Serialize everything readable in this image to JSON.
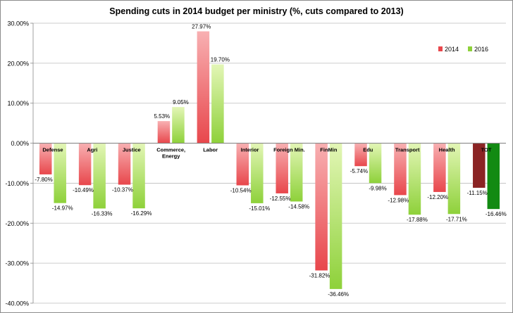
{
  "chart_data": {
    "type": "bar",
    "title": "Spending cuts in 2014 budget per ministry (%, cuts compared to 2013)",
    "xlabel": "",
    "ylabel": "",
    "ylim": [
      -40,
      30
    ],
    "ytick_step": 10,
    "y_tick_labels": [
      "30.00%",
      "20.00%",
      "10.00%",
      "0.00%",
      "-10.00%",
      "-20.00%",
      "-30.00%",
      "-40.00%"
    ],
    "categories": [
      "Defense",
      "Agri",
      "Justice",
      "Commerce,\nEnergy",
      "Labor",
      "Interior",
      "Foreign Min.",
      "FinMin",
      "Edu",
      "Transport",
      "Health",
      "TOT"
    ],
    "series": [
      {
        "name": "2014",
        "values": [
          -7.8,
          -10.49,
          -10.37,
          5.53,
          27.97,
          -10.54,
          -12.55,
          -31.82,
          -5.74,
          -12.98,
          -12.2,
          -11.15
        ],
        "labels": [
          "-7.80%",
          "-10.49%",
          "-10.37%",
          "5.53%",
          "27.97%",
          "-10.54%",
          "-12.55%",
          "-31.82%",
          "-5.74%",
          "-12.98%",
          "-12.20%",
          "-11.15%"
        ],
        "color": "#e8474c",
        "color_light": "#f8b0b2",
        "total_color": "#8b2424"
      },
      {
        "name": "2016",
        "values": [
          -14.97,
          -16.33,
          -16.29,
          9.05,
          19.7,
          -15.01,
          -14.58,
          -36.46,
          -9.98,
          -17.88,
          -17.71,
          -16.46
        ],
        "labels": [
          "-14.97%",
          "-16.33%",
          "-16.29%",
          "9.05%",
          "19.70%",
          "-15.01%",
          "-14.58%",
          "-36.46%",
          "-9.98%",
          "-17.88%",
          "-17.71%",
          "-16.46%"
        ],
        "color": "#8ed13a",
        "color_light": "#e3f6b6",
        "total_color": "#128a12"
      }
    ],
    "grid": true,
    "legend": "top-right"
  }
}
